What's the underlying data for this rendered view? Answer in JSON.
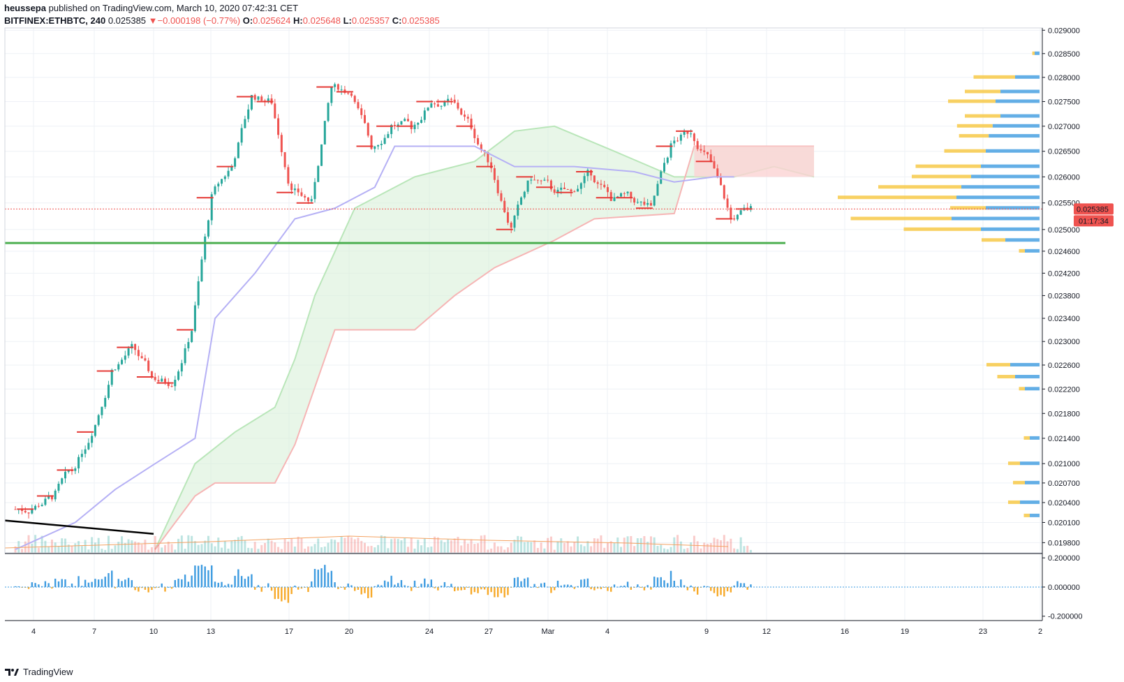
{
  "header": {
    "author": "heussepa",
    "published": "published on TradingView.com, March 10, 2020 07:42:31 CET",
    "symbol": "BITFINEX:ETHBTC, 240",
    "last": "0.025385",
    "change": "−0.000198 (−0.77%)",
    "open_label": "O:",
    "open": "0.025624",
    "high_label": "H:",
    "high": "0.025648",
    "low_label": "L:",
    "low": "0.025357",
    "close_label": "C:",
    "close": "0.025385"
  },
  "footer": {
    "brand": "TradingView",
    "logo_icon": "tradingview-logo-icon"
  },
  "price_badge": {
    "price": "0.025385",
    "countdown": "01:17:34",
    "color": "#ef5350"
  },
  "colors": {
    "up": "#26a69a",
    "down": "#ef5350",
    "kijun_line": "#b5b0f5",
    "cloud_green": "#b9e6b9",
    "cloud_red": "#f6b5b5",
    "support_line": "#4caf50",
    "trend_line": "#000000",
    "vp_up": "#3d9be0",
    "vp_down": "#f7c948"
  },
  "chart_data": [
    {
      "type": "candlestick",
      "symbol": "BITFINEX:ETHBTC",
      "interval": "240",
      "x_ticks": [
        "4",
        "7",
        "10",
        "13",
        "17",
        "20",
        "24",
        "27",
        "Mar",
        "4",
        "9",
        "12",
        "16",
        "19",
        "23",
        "2"
      ],
      "y_ticks": [
        "0.029000",
        "0.028500",
        "0.028000",
        "0.027500",
        "0.027000",
        "0.026500",
        "0.026000",
        "0.025500",
        "0.025000",
        "0.024600",
        "0.024200",
        "0.023800",
        "0.023400",
        "0.023000",
        "0.022600",
        "0.022200",
        "0.021800",
        "0.021400",
        "0.021000",
        "0.020700",
        "0.020400",
        "0.020100",
        "0.019800"
      ],
      "y_scale": "log",
      "ylim": [
        0.01965,
        0.02905
      ],
      "last_price": 0.025385,
      "daily_closes": [
        {
          "x": "Feb 3",
          "close": 0.0203
        },
        {
          "x": "Feb 4",
          "close": 0.0205
        },
        {
          "x": "Feb 5",
          "close": 0.0209
        },
        {
          "x": "Feb 6",
          "close": 0.0215
        },
        {
          "x": "Feb 7",
          "close": 0.0225
        },
        {
          "x": "Feb 8",
          "close": 0.0229
        },
        {
          "x": "Feb 9",
          "close": 0.0224
        },
        {
          "x": "Feb 10",
          "close": 0.0223
        },
        {
          "x": "Feb 11",
          "close": 0.0232
        },
        {
          "x": "Feb 12",
          "close": 0.0256
        },
        {
          "x": "Feb 13",
          "close": 0.0262
        },
        {
          "x": "Feb 14",
          "close": 0.0276
        },
        {
          "x": "Feb 15",
          "close": 0.0275
        },
        {
          "x": "Feb 16",
          "close": 0.0257
        },
        {
          "x": "Feb 17",
          "close": 0.0255
        },
        {
          "x": "Feb 18",
          "close": 0.0278
        },
        {
          "x": "Feb 19",
          "close": 0.0277
        },
        {
          "x": "Feb 20",
          "close": 0.0266
        },
        {
          "x": "Feb 21",
          "close": 0.027
        },
        {
          "x": "Feb 22",
          "close": 0.027
        },
        {
          "x": "Feb 23",
          "close": 0.0275
        },
        {
          "x": "Feb 24",
          "close": 0.0275
        },
        {
          "x": "Feb 25",
          "close": 0.027
        },
        {
          "x": "Feb 26",
          "close": 0.0262
        },
        {
          "x": "Feb 27",
          "close": 0.025
        },
        {
          "x": "Feb 28",
          "close": 0.026
        },
        {
          "x": "Feb 29",
          "close": 0.0258
        },
        {
          "x": "Mar 1",
          "close": 0.0257
        },
        {
          "x": "Mar 2",
          "close": 0.0261
        },
        {
          "x": "Mar 3",
          "close": 0.0256
        },
        {
          "x": "Mar 4",
          "close": 0.0256
        },
        {
          "x": "Mar 5",
          "close": 0.0254
        },
        {
          "x": "Mar 6",
          "close": 0.0266
        },
        {
          "x": "Mar 7",
          "close": 0.0269
        },
        {
          "x": "Mar 8",
          "close": 0.0263
        },
        {
          "x": "Mar 9",
          "close": 0.0252
        },
        {
          "x": "Mar 10",
          "close": 0.025385
        }
      ],
      "kijun": [
        {
          "x": "Feb 3",
          "y": 0.0197
        },
        {
          "x": "Feb 6",
          "y": 0.0201
        },
        {
          "x": "Feb 8",
          "y": 0.0206
        },
        {
          "x": "Feb 10",
          "y": 0.021
        },
        {
          "x": "Feb 12",
          "y": 0.0214
        },
        {
          "x": "Feb 13",
          "y": 0.0234
        },
        {
          "x": "Feb 15",
          "y": 0.0242
        },
        {
          "x": "Feb 17",
          "y": 0.0252
        },
        {
          "x": "Feb 19",
          "y": 0.0254
        },
        {
          "x": "Feb 21",
          "y": 0.0258
        },
        {
          "x": "Feb 22",
          "y": 0.0266
        },
        {
          "x": "Feb 26",
          "y": 0.0266
        },
        {
          "x": "Feb 28",
          "y": 0.0262
        },
        {
          "x": "Mar 2",
          "y": 0.0262
        },
        {
          "x": "Mar 5",
          "y": 0.0261
        },
        {
          "x": "Mar 7",
          "y": 0.0259
        },
        {
          "x": "Mar 9",
          "y": 0.026
        },
        {
          "x": "Mar 10",
          "y": 0.026
        }
      ],
      "cloud_span_a": [
        {
          "x": "Feb 10",
          "y": 0.0197
        },
        {
          "x": "Feb 12",
          "y": 0.021
        },
        {
          "x": "Feb 14",
          "y": 0.0215
        },
        {
          "x": "Feb 16",
          "y": 0.0219
        },
        {
          "x": "Feb 17",
          "y": 0.0227
        },
        {
          "x": "Feb 18",
          "y": 0.0238
        },
        {
          "x": "Feb 20",
          "y": 0.0254
        },
        {
          "x": "Feb 23",
          "y": 0.026
        },
        {
          "x": "Feb 26",
          "y": 0.0263
        },
        {
          "x": "Feb 28",
          "y": 0.0269
        },
        {
          "x": "Mar 1",
          "y": 0.027
        },
        {
          "x": "Mar 4",
          "y": 0.0265
        },
        {
          "x": "Mar 7",
          "y": 0.026
        },
        {
          "x": "Mar 10",
          "y": 0.026
        },
        {
          "x": "Mar 12",
          "y": 0.0262
        },
        {
          "x": "Mar 14",
          "y": 0.026
        }
      ],
      "cloud_span_b": [
        {
          "x": "Feb 10",
          "y": 0.0197
        },
        {
          "x": "Feb 12",
          "y": 0.0205
        },
        {
          "x": "Feb 13",
          "y": 0.0207
        },
        {
          "x": "Feb 16",
          "y": 0.0207
        },
        {
          "x": "Feb 17",
          "y": 0.0213
        },
        {
          "x": "Feb 19",
          "y": 0.0232
        },
        {
          "x": "Feb 23",
          "y": 0.0232
        },
        {
          "x": "Feb 25",
          "y": 0.0238
        },
        {
          "x": "Feb 27",
          "y": 0.0243
        },
        {
          "x": "Mar 1",
          "y": 0.0248
        },
        {
          "x": "Mar 3",
          "y": 0.0252
        },
        {
          "x": "Mar 7",
          "y": 0.0253
        },
        {
          "x": "Mar 8",
          "y": 0.0266
        },
        {
          "x": "Mar 14",
          "y": 0.0266
        }
      ],
      "support_level": 0.02475,
      "volume_profile": {
        "levels": [
          0.0285,
          0.028,
          0.0277,
          0.0275,
          0.0272,
          0.027,
          0.0268,
          0.0265,
          0.0262,
          0.026,
          0.0258,
          0.0256,
          0.0254,
          0.0252,
          0.025,
          0.0248,
          0.0246,
          0.0226,
          0.0224,
          0.0222,
          0.0214,
          0.021,
          0.0207,
          0.0204,
          0.0202
        ],
        "up_volume": [
          0.05,
          0.25,
          0.4,
          0.45,
          0.4,
          0.48,
          0.52,
          0.55,
          0.6,
          0.7,
          0.8,
          0.85,
          0.55,
          0.9,
          0.6,
          0.35,
          0.15,
          0.3,
          0.25,
          0.15,
          0.1,
          0.2,
          0.15,
          0.2,
          0.1
        ],
        "down_volume": [
          0.02,
          0.35,
          0.3,
          0.4,
          0.3,
          0.3,
          0.25,
          0.35,
          0.55,
          0.5,
          0.7,
          1.0,
          0.3,
          0.85,
          0.65,
          0.2,
          0.05,
          0.2,
          0.15,
          0.05,
          0.05,
          0.1,
          0.1,
          0.1,
          0.05
        ]
      }
    },
    {
      "type": "bar",
      "name": "oscillator",
      "y_ticks": [
        "0.200000",
        "0.000000",
        "-0.200000"
      ],
      "ylim": [
        -0.23,
        0.22
      ]
    }
  ]
}
